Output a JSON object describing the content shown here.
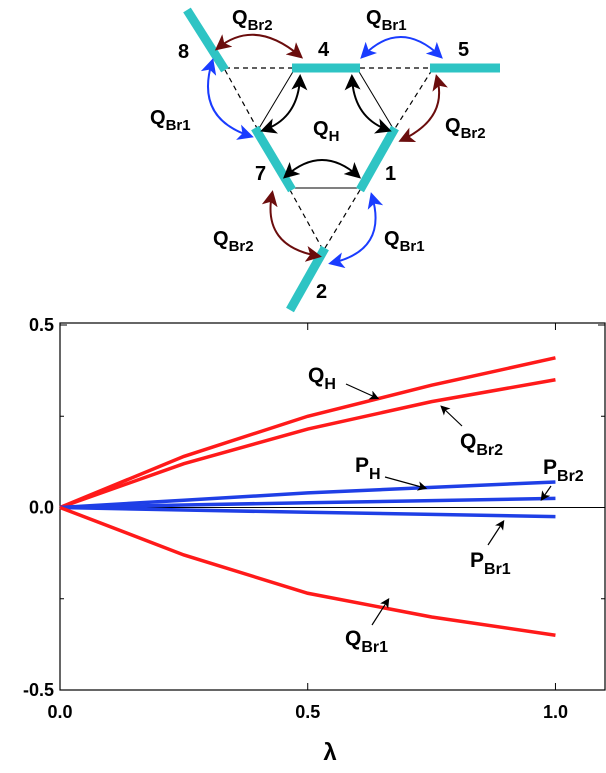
{
  "diagram": {
    "nodes": [
      "8",
      "4",
      "5",
      "7",
      "1",
      "2"
    ],
    "labels": [
      {
        "main": "Q",
        "sub": "Br2"
      },
      {
        "main": "Q",
        "sub": "Br1"
      },
      {
        "main": "Q",
        "sub": "Br1"
      },
      {
        "main": "Q",
        "sub": "H"
      },
      {
        "main": "Q",
        "sub": "Br2"
      },
      {
        "main": "Q",
        "sub": "Br2"
      },
      {
        "main": "Q",
        "sub": "Br1"
      }
    ]
  },
  "chart_data": {
    "type": "line",
    "xlabel": "λ",
    "x": [
      0,
      0.25,
      0.5,
      0.75,
      1.0
    ],
    "series": [
      {
        "name": "Q",
        "subscript": "H",
        "color": "#ff1a1a",
        "values": [
          0,
          0.14,
          0.25,
          0.335,
          0.41
        ]
      },
      {
        "name": "Q",
        "subscript": "Br2",
        "color": "#ff1a1a",
        "values": [
          0,
          0.12,
          0.215,
          0.29,
          0.35
        ]
      },
      {
        "name": "P",
        "subscript": "H",
        "color": "#1f3fe6",
        "values": [
          0,
          0.02,
          0.04,
          0.055,
          0.07
        ]
      },
      {
        "name": "P",
        "subscript": "Br2",
        "color": "#1f3fe6",
        "values": [
          0,
          0.007,
          0.013,
          0.019,
          0.025
        ]
      },
      {
        "name": "P",
        "subscript": "Br1",
        "color": "#1f3fe6",
        "values": [
          0,
          -0.007,
          -0.013,
          -0.019,
          -0.025
        ]
      },
      {
        "name": "Q",
        "subscript": "Br1",
        "color": "#ff1a1a",
        "values": [
          0,
          -0.13,
          -0.235,
          -0.3,
          -0.35
        ]
      }
    ],
    "xlim": [
      0,
      1.1
    ],
    "ylim": [
      -0.5,
      0.5
    ],
    "xticks": [
      {
        "value": 0,
        "label": "0.0"
      },
      0.5,
      {
        "value": 1.0,
        "label": "1.0"
      }
    ],
    "yticks": [
      -0.5,
      {
        "value": 0,
        "label": "0.0"
      },
      0.5
    ],
    "yminorticks": [
      -0.25,
      0.25
    ]
  }
}
